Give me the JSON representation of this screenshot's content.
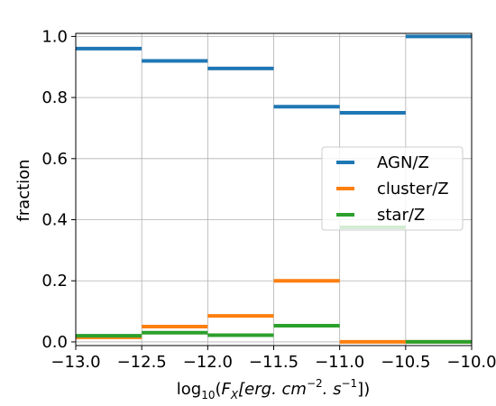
{
  "chart_data": {
    "type": "line",
    "title": "",
    "xlabel_prefix": "log",
    "xlabel_sub": "10",
    "xlabel_rest": "(F",
    "xlabel_sub2": "X",
    "xlabel_unit": "[erg. cm",
    "xlabel_sup1": "−2",
    "xlabel_mid": ". s",
    "xlabel_sup2": "−1",
    "xlabel_end": "])",
    "ylabel": "fraction",
    "xlim": [
      -13.0,
      -10.0
    ],
    "ylim": [
      0.0,
      1.0
    ],
    "x_ticks": [
      -13.0,
      -12.5,
      -12.0,
      -11.5,
      -11.0,
      -10.5,
      -10.0
    ],
    "x_tick_labels": [
      "−13.0",
      "−12.5",
      "−12.0",
      "−11.5",
      "−11.0",
      "−10.5",
      "−10.0"
    ],
    "y_ticks": [
      0.0,
      0.2,
      0.4,
      0.6,
      0.8,
      1.0
    ],
    "y_tick_labels": [
      "0.0",
      "0.2",
      "0.4",
      "0.6",
      "0.8",
      "1.0"
    ],
    "grid": true,
    "legend_position": "center-right",
    "series": [
      {
        "name": "AGN/Z",
        "color": "#1f77b4",
        "segments": [
          {
            "x0": -13.0,
            "x1": -12.5,
            "y": 0.96
          },
          {
            "x0": -12.5,
            "x1": -12.0,
            "y": 0.92
          },
          {
            "x0": -12.0,
            "x1": -11.5,
            "y": 0.895
          },
          {
            "x0": -11.5,
            "x1": -11.0,
            "y": 0.77
          },
          {
            "x0": -11.0,
            "x1": -10.5,
            "y": 0.75
          },
          {
            "x0": -10.5,
            "x1": -10.0,
            "y": 1.0
          }
        ]
      },
      {
        "name": "cluster/Z",
        "color": "#ff7f0e",
        "segments": [
          {
            "x0": -13.0,
            "x1": -12.5,
            "y": 0.015
          },
          {
            "x0": -12.5,
            "x1": -12.0,
            "y": 0.05
          },
          {
            "x0": -12.0,
            "x1": -11.5,
            "y": 0.085
          },
          {
            "x0": -11.5,
            "x1": -11.0,
            "y": 0.2
          },
          {
            "x0": -11.0,
            "x1": -10.5,
            "y": 0.0
          },
          {
            "x0": -10.5,
            "x1": -10.0,
            "y": 0.0
          }
        ]
      },
      {
        "name": "star/Z",
        "color": "#2ca02c",
        "segments": [
          {
            "x0": -13.0,
            "x1": -12.5,
            "y": 0.02
          },
          {
            "x0": -12.5,
            "x1": -12.0,
            "y": 0.03
          },
          {
            "x0": -12.0,
            "x1": -11.5,
            "y": 0.022
          },
          {
            "x0": -11.5,
            "x1": -11.0,
            "y": 0.053
          },
          {
            "x0": -11.0,
            "x1": -10.5,
            "y": 0.375
          },
          {
            "x0": -10.5,
            "x1": -10.0,
            "y": 0.0
          }
        ]
      }
    ]
  }
}
